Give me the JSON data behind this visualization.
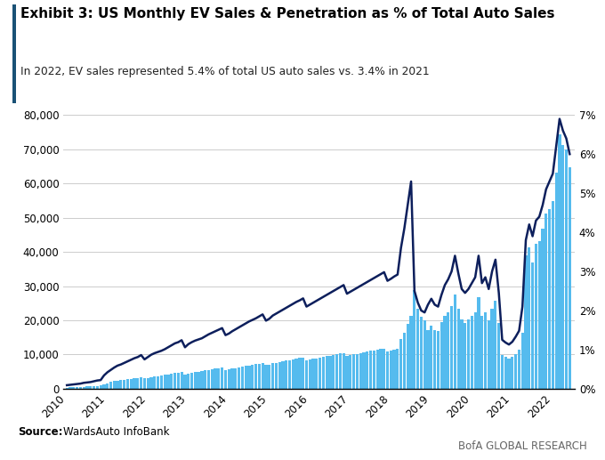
{
  "title": "Exhibit 3: US Monthly EV Sales & Penetration as % of Total Auto Sales",
  "subtitle": "In 2022, EV sales represented 5.4% of total US auto sales vs. 3.4% in 2021",
  "source_label": "Source:",
  "source_text": "WardsAuto InfoBank",
  "watermark": "BofA GLOBAL RESEARCH",
  "bar_color": "#55BBEE",
  "line_color": "#0D1F5C",
  "title_bar_color": "#1A5276",
  "background_color": "#FFFFFF",
  "ylim_left": [
    0,
    80000
  ],
  "ylim_right": [
    0,
    0.07
  ],
  "yticks_left": [
    0,
    10000,
    20000,
    30000,
    40000,
    50000,
    60000,
    70000,
    80000
  ],
  "ytick_labels_left": [
    "0",
    "10,000",
    "20,000",
    "30,000",
    "40,000",
    "50,000",
    "60,000",
    "70,000",
    "80,000"
  ],
  "yticks_right": [
    0.0,
    0.01,
    0.02,
    0.03,
    0.04,
    0.05,
    0.06,
    0.07
  ],
  "ytick_labels_right": [
    "0%",
    "1%",
    "2%",
    "3%",
    "4%",
    "5%",
    "6%",
    "7%"
  ],
  "monthly_ev_sales": [
    326,
    389,
    412,
    467,
    521,
    584,
    623,
    691,
    754,
    812,
    876,
    1321,
    1654,
    1923,
    2187,
    2341,
    2456,
    2612,
    2801,
    2934,
    3100,
    3201,
    3401,
    2987,
    3200,
    3456,
    3601,
    3712,
    3834,
    4012,
    4201,
    4401,
    4589,
    4723,
    4912,
    4201,
    4512,
    4723,
    4856,
    4978,
    5123,
    5312,
    5501,
    5678,
    5834,
    5967,
    6123,
    5401,
    5601,
    5823,
    6012,
    6201,
    6401,
    6612,
    6801,
    6978,
    7134,
    7312,
    7523,
    6901,
    7101,
    7401,
    7612,
    7812,
    8012,
    8201,
    8401,
    8601,
    8789,
    8967,
    9145,
    8312,
    8512,
    8734,
    8912,
    9134,
    9312,
    9501,
    9712,
    9901,
    10089,
    10245,
    10423,
    9601,
    9823,
    10034,
    10234,
    10456,
    10634,
    10823,
    11034,
    11234,
    11423,
    11601,
    11789,
    10934,
    11134,
    11401,
    11612,
    14512,
    16234,
    18901,
    21234,
    28934,
    23456,
    21012,
    19876,
    17234,
    18456,
    17234,
    16789,
    19345,
    21234,
    22456,
    24123,
    27456,
    23456,
    20123,
    19234,
    20134,
    21234,
    22456,
    26789,
    21234,
    22345,
    19876,
    23456,
    25678,
    19234,
    9876,
    9234,
    8901,
    9234,
    10234,
    11456,
    16234,
    38901,
    41234,
    36789,
    42456,
    43234,
    46789,
    51234,
    52456,
    54789,
    63234,
    74456,
    71234,
    69876,
    64789
  ],
  "monthly_penetration": [
    0.0009,
    0.001,
    0.0011,
    0.0012,
    0.0013,
    0.0015,
    0.0016,
    0.0017,
    0.0019,
    0.0021,
    0.0022,
    0.0034,
    0.0042,
    0.0048,
    0.0054,
    0.0059,
    0.0062,
    0.0066,
    0.007,
    0.0074,
    0.0078,
    0.0081,
    0.0086,
    0.0075,
    0.0081,
    0.0087,
    0.0091,
    0.0094,
    0.0097,
    0.0101,
    0.0106,
    0.0111,
    0.0116,
    0.0119,
    0.0124,
    0.0106,
    0.0114,
    0.0119,
    0.0123,
    0.0126,
    0.0129,
    0.0134,
    0.0139,
    0.0143,
    0.0147,
    0.0151,
    0.0155,
    0.0137,
    0.0141,
    0.0147,
    0.0152,
    0.0157,
    0.0162,
    0.0167,
    0.0172,
    0.0176,
    0.018,
    0.0185,
    0.019,
    0.0174,
    0.0179,
    0.0187,
    0.0192,
    0.0197,
    0.0202,
    0.0207,
    0.0212,
    0.0217,
    0.0222,
    0.0226,
    0.0231,
    0.021,
    0.0215,
    0.022,
    0.0225,
    0.023,
    0.0235,
    0.024,
    0.0245,
    0.025,
    0.0255,
    0.026,
    0.0265,
    0.0243,
    0.0248,
    0.0253,
    0.0258,
    0.0263,
    0.0268,
    0.0273,
    0.0278,
    0.0283,
    0.0288,
    0.0293,
    0.0298,
    0.0276,
    0.0281,
    0.0287,
    0.0292,
    0.036,
    0.041,
    0.047,
    0.053,
    0.025,
    0.022,
    0.02,
    0.0195,
    0.0215,
    0.023,
    0.0215,
    0.021,
    0.024,
    0.0265,
    0.028,
    0.03,
    0.034,
    0.0295,
    0.0255,
    0.0245,
    0.0255,
    0.027,
    0.0285,
    0.034,
    0.027,
    0.0285,
    0.0255,
    0.03,
    0.033,
    0.0245,
    0.0125,
    0.0118,
    0.0113,
    0.012,
    0.0133,
    0.0148,
    0.021,
    0.038,
    0.042,
    0.039,
    0.043,
    0.044,
    0.047,
    0.051,
    0.053,
    0.055,
    0.062,
    0.069,
    0.066,
    0.064,
    0.06
  ]
}
